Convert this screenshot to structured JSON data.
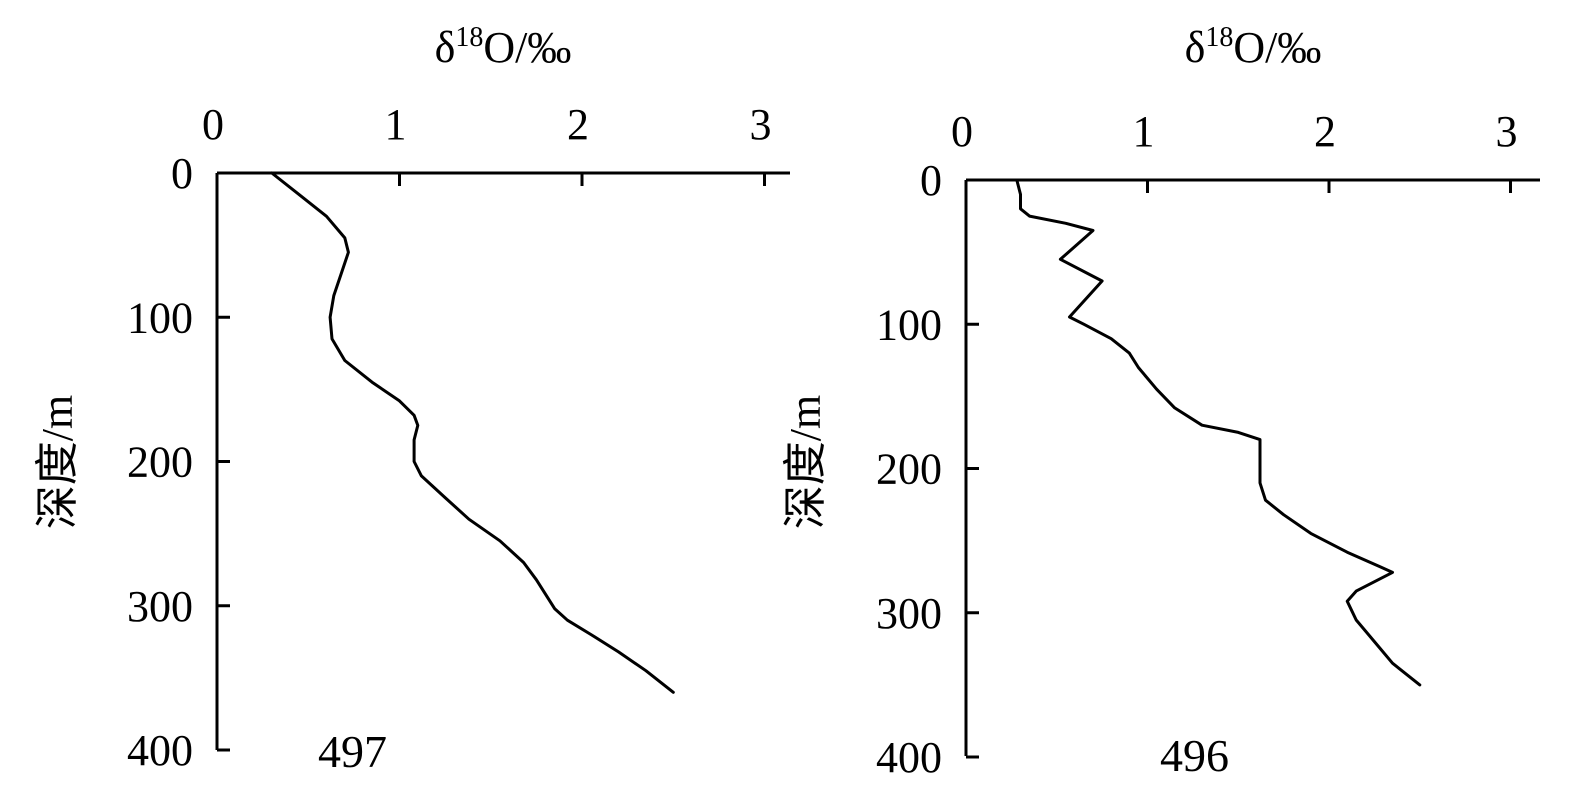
{
  "chart_data": [
    {
      "type": "line",
      "xlabel": "δ18O/‰",
      "xlabel_parts": {
        "base": "δ",
        "sup": "18",
        "tail": "O/‰"
      },
      "ylabel": "深度/m",
      "x_ticks": [
        "0",
        "1",
        "2",
        "3"
      ],
      "y_ticks": [
        "0",
        "100",
        "200",
        "300",
        "400"
      ],
      "xlim": [
        0,
        3.1
      ],
      "ylim": [
        0,
        400
      ],
      "y_inverted": true,
      "x_axis_position": "top",
      "annotation": "497",
      "series": [
        {
          "x": [
            0.3,
            0.45,
            0.6,
            0.7,
            0.72,
            0.68,
            0.64,
            0.62,
            0.63,
            0.7,
            0.85,
            1.0,
            1.08,
            1.1,
            1.08,
            1.08,
            1.12,
            1.25,
            1.38,
            1.55,
            1.68,
            1.75,
            1.8,
            1.85,
            1.92,
            2.05,
            2.2,
            2.35,
            2.5
          ],
          "y": [
            0,
            15,
            30,
            45,
            55,
            70,
            85,
            100,
            115,
            130,
            145,
            158,
            168,
            175,
            185,
            200,
            210,
            225,
            240,
            255,
            270,
            282,
            292,
            302,
            310,
            320,
            332,
            345,
            360
          ]
        }
      ]
    },
    {
      "type": "line",
      "xlabel": "δ18O/‰",
      "xlabel_parts": {
        "base": "δ",
        "sup": "18",
        "tail": "O/‰"
      },
      "ylabel": "深度/m",
      "x_ticks": [
        "0",
        "1",
        "2",
        "3"
      ],
      "y_ticks": [
        "0",
        "100",
        "200",
        "300",
        "400"
      ],
      "xlim": [
        0,
        3.1
      ],
      "ylim": [
        0,
        400
      ],
      "y_inverted": true,
      "x_axis_position": "top",
      "annotation": "496",
      "series": [
        {
          "x": [
            0.28,
            0.3,
            0.3,
            0.35,
            0.55,
            0.7,
            0.52,
            0.75,
            0.57,
            0.65,
            0.8,
            0.9,
            0.95,
            1.05,
            1.15,
            1.3,
            1.5,
            1.62,
            1.62,
            1.62,
            1.65,
            1.75,
            1.9,
            2.1,
            2.28,
            2.35,
            2.15,
            2.1,
            2.15,
            2.25,
            2.35,
            2.5
          ],
          "y": [
            0,
            10,
            20,
            25,
            30,
            35,
            55,
            70,
            95,
            100,
            110,
            120,
            130,
            145,
            158,
            170,
            175,
            180,
            195,
            210,
            222,
            232,
            245,
            258,
            268,
            272,
            285,
            292,
            305,
            320,
            335,
            350
          ]
        }
      ]
    }
  ]
}
